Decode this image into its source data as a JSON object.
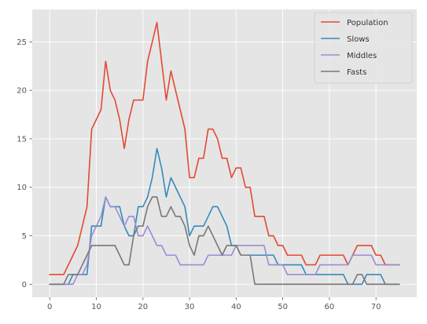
{
  "chart_data": {
    "type": "line",
    "title": "",
    "xlabel": "",
    "ylabel": "",
    "xlim": [
      -3.75,
      78.75
    ],
    "ylim": [
      -1.35,
      28.35
    ],
    "xticks": [
      0,
      10,
      20,
      30,
      40,
      50,
      60,
      70
    ],
    "yticks": [
      0,
      5,
      10,
      15,
      20,
      25
    ],
    "grid": true,
    "legend_position": "top-right",
    "x": [
      0,
      1,
      2,
      3,
      4,
      5,
      6,
      7,
      8,
      9,
      10,
      11,
      12,
      13,
      14,
      15,
      16,
      17,
      18,
      19,
      20,
      21,
      22,
      23,
      24,
      25,
      26,
      27,
      28,
      29,
      30,
      31,
      32,
      33,
      34,
      35,
      36,
      37,
      38,
      39,
      40,
      41,
      42,
      43,
      44,
      45,
      46,
      47,
      48,
      49,
      50,
      51,
      52,
      53,
      54,
      55,
      56,
      57,
      58,
      59,
      60,
      61,
      62,
      63,
      64,
      65,
      66,
      67,
      68,
      69,
      70,
      71,
      72,
      73,
      74,
      75
    ],
    "series": [
      {
        "name": "Population",
        "color": "#E24A33",
        "values": [
          1,
          1,
          1,
          1,
          2,
          3,
          4,
          6,
          8,
          16,
          17,
          18,
          23,
          20,
          19,
          17,
          14,
          17,
          19,
          19,
          19,
          23,
          25,
          27,
          23,
          19,
          22,
          20,
          18,
          16,
          11,
          11,
          13,
          13,
          16,
          16,
          15,
          13,
          13,
          11,
          12,
          12,
          10,
          10,
          7,
          7,
          7,
          5,
          5,
          4,
          4,
          3,
          3,
          3,
          3,
          2,
          2,
          2,
          3,
          3,
          3,
          3,
          3,
          3,
          2,
          3,
          4,
          4,
          4,
          4,
          3,
          3,
          2,
          2,
          2,
          2
        ]
      },
      {
        "name": "Slows",
        "color": "#348ABD",
        "values": [
          0,
          0,
          0,
          0,
          0,
          1,
          1,
          1,
          1,
          6,
          6,
          6,
          9,
          8,
          8,
          8,
          6,
          5,
          5,
          8,
          8,
          9,
          11,
          14,
          12,
          9,
          11,
          10,
          9,
          8,
          5,
          6,
          6,
          6,
          7,
          8,
          8,
          7,
          6,
          4,
          4,
          3,
          3,
          3,
          3,
          3,
          3,
          3,
          3,
          2,
          2,
          2,
          2,
          2,
          2,
          1,
          1,
          1,
          1,
          1,
          1,
          1,
          1,
          1,
          0,
          0,
          0,
          0,
          1,
          1,
          1,
          1,
          0,
          0,
          0,
          0
        ]
      },
      {
        "name": "Middles",
        "color": "#988ED5",
        "values": [
          0,
          0,
          0,
          0,
          0,
          0,
          1,
          1,
          2,
          5,
          6,
          7,
          9,
          8,
          8,
          7,
          6,
          7,
          7,
          5,
          5,
          6,
          5,
          4,
          4,
          3,
          3,
          3,
          2,
          2,
          2,
          2,
          2,
          2,
          3,
          3,
          3,
          3,
          3,
          3,
          4,
          4,
          4,
          4,
          4,
          4,
          4,
          2,
          2,
          2,
          2,
          1,
          1,
          1,
          1,
          1,
          1,
          1,
          2,
          2,
          2,
          2,
          2,
          2,
          2,
          3,
          3,
          3,
          3,
          3,
          2,
          2,
          2,
          2,
          2,
          2
        ]
      },
      {
        "name": "Fasts",
        "color": "#777777",
        "values": [
          0,
          0,
          0,
          0,
          1,
          1,
          1,
          2,
          3,
          4,
          4,
          4,
          4,
          4,
          4,
          3,
          2,
          2,
          5,
          6,
          6,
          8,
          9,
          9,
          7,
          7,
          8,
          7,
          7,
          6,
          4,
          3,
          5,
          5,
          6,
          5,
          4,
          3,
          4,
          4,
          4,
          3,
          3,
          3,
          0,
          0,
          0,
          0,
          0,
          0,
          0,
          0,
          0,
          0,
          0,
          0,
          0,
          0,
          0,
          0,
          0,
          0,
          0,
          0,
          0,
          0,
          1,
          1,
          0,
          0,
          0,
          0,
          0,
          0,
          0,
          0
        ]
      }
    ]
  }
}
